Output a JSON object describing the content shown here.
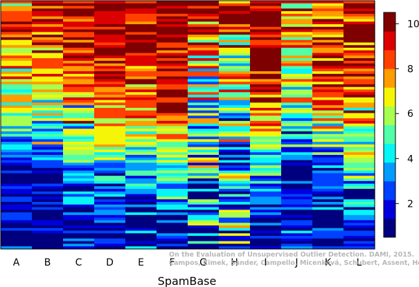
{
  "chart_data": {
    "type": "heatmap",
    "xlabel": "SpamBase",
    "columns": [
      "A",
      "B",
      "C",
      "D",
      "E",
      "F",
      "G",
      "H",
      "I",
      "J",
      "K",
      "L"
    ],
    "value_range": [
      0.5,
      10.5
    ],
    "colorbar_ticks": [
      2,
      4,
      6,
      8,
      10
    ],
    "colorscale": [
      "#00007f",
      "#0000dd",
      "#0040ff",
      "#009cff",
      "#08f5f5",
      "#50ffa8",
      "#a8ff50",
      "#f5f508",
      "#ff9c00",
      "#ff4000",
      "#dd0000",
      "#7f0000"
    ],
    "column_profiles": [
      {
        "column": "A",
        "knots": [
          [
            0,
            9
          ],
          [
            0.08,
            9
          ],
          [
            0.18,
            8
          ],
          [
            0.32,
            7
          ],
          [
            0.45,
            5.5
          ],
          [
            0.55,
            3.5
          ],
          [
            0.62,
            2
          ],
          [
            0.7,
            1
          ],
          [
            1,
            1
          ]
        ],
        "noise": 2.0
      },
      {
        "column": "B",
        "knots": [
          [
            0,
            9
          ],
          [
            0.08,
            9
          ],
          [
            0.18,
            8
          ],
          [
            0.32,
            7
          ],
          [
            0.45,
            5.5
          ],
          [
            0.55,
            3.5
          ],
          [
            0.62,
            2
          ],
          [
            0.7,
            1
          ],
          [
            1,
            1
          ]
        ],
        "noise": 2.0
      },
      {
        "column": "C",
        "knots": [
          [
            0,
            10
          ],
          [
            0.15,
            9.5
          ],
          [
            0.3,
            8.5
          ],
          [
            0.45,
            7
          ],
          [
            0.6,
            5
          ],
          [
            0.72,
            3.5
          ],
          [
            0.85,
            2
          ],
          [
            1,
            1
          ]
        ],
        "noise": 2.2
      },
      {
        "column": "D",
        "knots": [
          [
            0,
            10.5
          ],
          [
            0.15,
            10
          ],
          [
            0.3,
            9
          ],
          [
            0.45,
            7.5
          ],
          [
            0.6,
            5.5
          ],
          [
            0.72,
            3.5
          ],
          [
            0.82,
            2
          ],
          [
            1,
            1
          ]
        ],
        "noise": 1.8
      },
      {
        "column": "E",
        "knots": [
          [
            0,
            10
          ],
          [
            0.15,
            9.5
          ],
          [
            0.3,
            8.5
          ],
          [
            0.45,
            7
          ],
          [
            0.6,
            5
          ],
          [
            0.72,
            3.5
          ],
          [
            0.82,
            2
          ],
          [
            1,
            1
          ]
        ],
        "noise": 2.2
      },
      {
        "column": "F",
        "knots": [
          [
            0,
            10.5
          ],
          [
            0.15,
            10
          ],
          [
            0.3,
            9.5
          ],
          [
            0.45,
            9
          ],
          [
            0.55,
            7
          ],
          [
            0.65,
            5
          ],
          [
            0.75,
            4
          ],
          [
            0.85,
            2.5
          ],
          [
            1,
            1
          ]
        ],
        "noise": 1.8
      },
      {
        "column": "G",
        "knots": [
          [
            0,
            10
          ],
          [
            0.1,
            9
          ],
          [
            0.2,
            7
          ],
          [
            0.35,
            6
          ],
          [
            0.5,
            5
          ],
          [
            0.65,
            4
          ],
          [
            0.8,
            3
          ],
          [
            0.9,
            4
          ],
          [
            1,
            2
          ]
        ],
        "noise": 3.6
      },
      {
        "column": "H",
        "knots": [
          [
            0,
            9.5
          ],
          [
            0.1,
            8.5
          ],
          [
            0.2,
            7
          ],
          [
            0.35,
            6
          ],
          [
            0.5,
            5
          ],
          [
            0.65,
            4
          ],
          [
            0.8,
            4
          ],
          [
            0.9,
            5
          ],
          [
            1,
            3
          ]
        ],
        "noise": 3.6
      },
      {
        "column": "I",
        "knots": [
          [
            0,
            10
          ],
          [
            0.2,
            10
          ],
          [
            0.35,
            9
          ],
          [
            0.5,
            7
          ],
          [
            0.6,
            5
          ],
          [
            0.7,
            4
          ],
          [
            0.8,
            2
          ],
          [
            1,
            1
          ]
        ],
        "noise": 2.0
      },
      {
        "column": "J",
        "knots": [
          [
            0,
            8
          ],
          [
            0.1,
            7.5
          ],
          [
            0.25,
            7
          ],
          [
            0.4,
            6
          ],
          [
            0.5,
            4
          ],
          [
            0.6,
            3
          ],
          [
            0.75,
            2
          ],
          [
            1,
            1
          ]
        ],
        "noise": 3.0
      },
      {
        "column": "K",
        "knots": [
          [
            0,
            9
          ],
          [
            0.15,
            9
          ],
          [
            0.3,
            8
          ],
          [
            0.45,
            7
          ],
          [
            0.55,
            5
          ],
          [
            0.65,
            3.5
          ],
          [
            0.78,
            2
          ],
          [
            1,
            1
          ]
        ],
        "noise": 2.6
      },
      {
        "column": "L",
        "knots": [
          [
            0,
            9.5
          ],
          [
            0.15,
            9
          ],
          [
            0.3,
            8.5
          ],
          [
            0.45,
            8
          ],
          [
            0.55,
            6
          ],
          [
            0.65,
            4.5
          ],
          [
            0.78,
            3
          ],
          [
            0.88,
            2
          ],
          [
            1,
            1
          ]
        ],
        "noise": 2.4
      }
    ],
    "rows_per_column": 95,
    "credit": [
      "On the Evaluation of Unsupervised Outlier Detection. DAMI, 2015.",
      "Campos, Zimek, Sander, Campello, Micenková, Schubert, Assent, Houle"
    ]
  }
}
